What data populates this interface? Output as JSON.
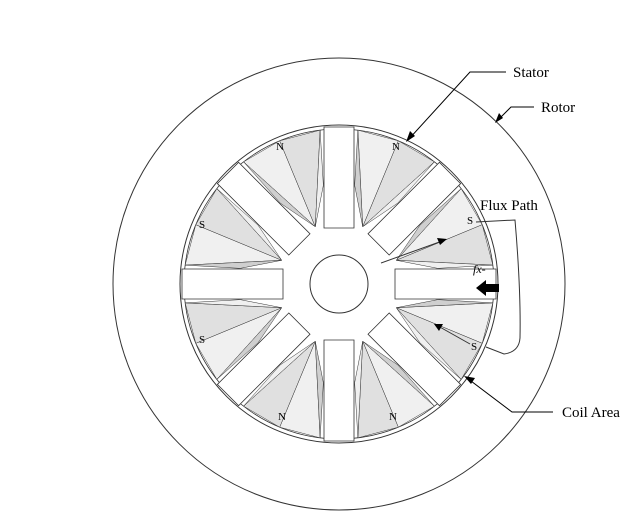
{
  "diagram": {
    "labels": {
      "stator": "Stator",
      "rotor": "Rotor",
      "flux_path": "Flux Path",
      "coil_area": "Coil Area",
      "force": "fx-"
    },
    "pole_labels": [
      "S",
      "N",
      "N",
      "S",
      "S",
      "N",
      "N",
      "S"
    ],
    "colors": {
      "line": "#333333",
      "gap_fill": "#ffffff",
      "coil_light": "#f0f0f0",
      "coil_mid": "#e0e0e0",
      "coil_dark": "#cfcfcf",
      "arrow": "#000000"
    }
  }
}
